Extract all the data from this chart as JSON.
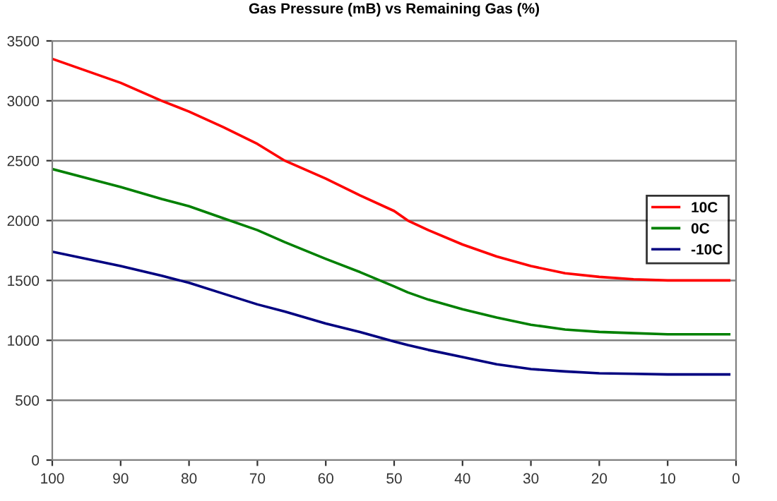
{
  "chart_data": {
    "type": "line",
    "title": "Gas Pressure (mB) vs Remaining Gas (%)",
    "x": [
      100,
      90,
      84,
      80,
      75,
      70,
      66,
      60,
      55,
      50,
      48,
      45,
      40,
      35,
      30,
      25,
      20,
      15,
      10,
      5,
      1
    ],
    "series": [
      {
        "name": "10C",
        "color": "#ff0000",
        "values": [
          3350,
          3150,
          3000,
          2910,
          2780,
          2640,
          2500,
          2350,
          2210,
          2080,
          2000,
          1920,
          1800,
          1700,
          1620,
          1560,
          1530,
          1510,
          1500,
          1500,
          1500
        ]
      },
      {
        "name": "0C",
        "color": "#008000",
        "values": [
          2430,
          2280,
          2180,
          2120,
          2020,
          1920,
          1820,
          1680,
          1570,
          1450,
          1400,
          1340,
          1260,
          1190,
          1130,
          1090,
          1070,
          1060,
          1050,
          1050,
          1050
        ]
      },
      {
        "name": "-10C",
        "color": "#000080",
        "values": [
          1740,
          1620,
          1540,
          1480,
          1390,
          1300,
          1240,
          1140,
          1070,
          990,
          960,
          920,
          860,
          800,
          760,
          740,
          725,
          720,
          715,
          715,
          715
        ]
      }
    ],
    "xlim": [
      100,
      0
    ],
    "xticks": [
      100,
      90,
      80,
      70,
      60,
      50,
      40,
      30,
      20,
      10,
      0
    ],
    "ylim": [
      0,
      3500
    ],
    "yticks": [
      0,
      500,
      1000,
      1500,
      2000,
      2500,
      3000,
      3500
    ],
    "grid": "y",
    "legend": "center right",
    "marker": "none",
    "line_style": "solid"
  }
}
